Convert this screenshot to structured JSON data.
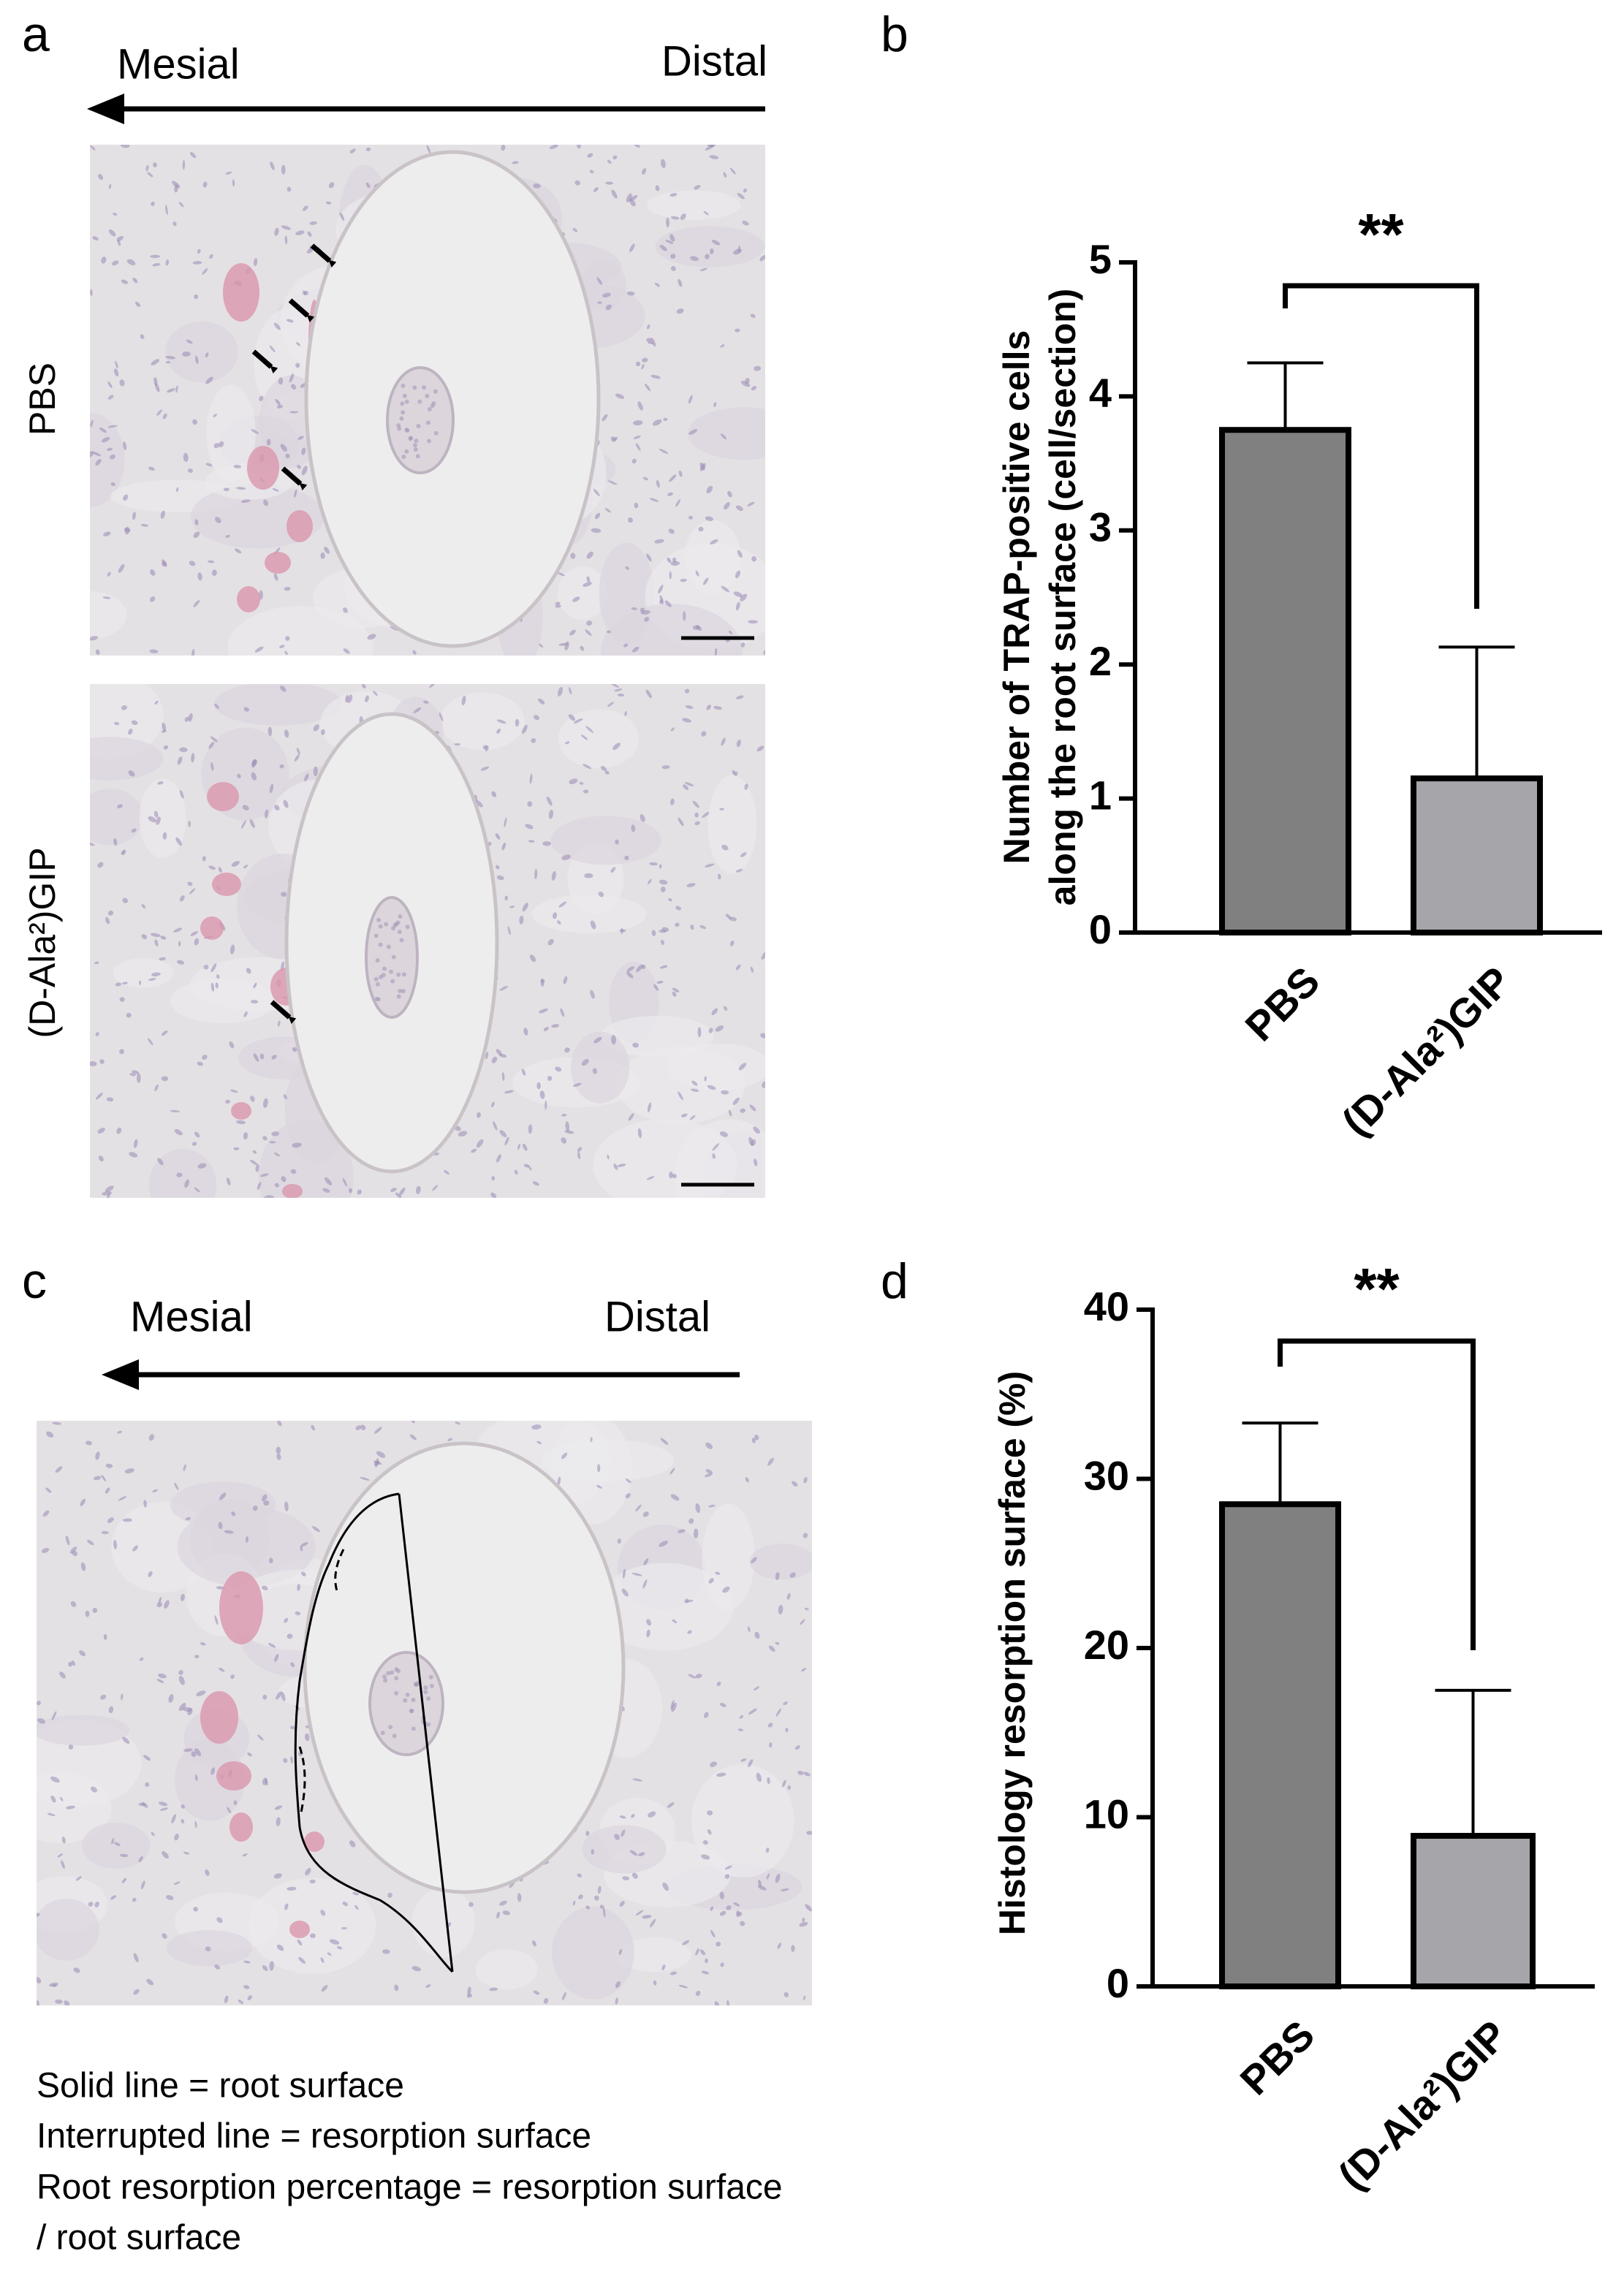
{
  "panels": {
    "a": {
      "label": "a",
      "mesial": "Mesial",
      "distal": "Distal",
      "rows": [
        "PBS",
        "(D-Ala²)GIP"
      ]
    },
    "b": {
      "label": "b"
    },
    "c": {
      "label": "c",
      "mesial": "Mesial",
      "distal": "Distal",
      "notes": [
        "Solid line = root surface",
        "Interrupted line = resorption surface",
        "Root resorption percentage = resorption surface",
        "/ root surface"
      ]
    },
    "d": {
      "label": "d"
    }
  },
  "chart_data": [
    {
      "type": "bar",
      "ylabel": [
        "Number of TRAP-positive cells",
        "along the root surface (cell/section)"
      ],
      "categories": [
        "PBS",
        "(D-Ala²)GIP"
      ],
      "values": [
        3.75,
        1.15
      ],
      "errors": [
        0.5,
        0.98
      ],
      "colors": [
        "#808080",
        "#a5a5aa"
      ],
      "ylim": [
        0,
        5
      ],
      "yticks": [
        0,
        1,
        2,
        3,
        4,
        5
      ],
      "annotation": "**"
    },
    {
      "type": "bar",
      "ylabel": [
        "Histology resorption surface (%)"
      ],
      "categories": [
        "PBS",
        "(D-Ala²)GIP"
      ],
      "values": [
        28.5,
        8.9
      ],
      "errors": [
        4.8,
        8.6
      ],
      "colors": [
        "#808080",
        "#a5a5aa"
      ],
      "ylim": [
        0,
        40
      ],
      "yticks": [
        0,
        10,
        20,
        30,
        40
      ],
      "annotation": "**"
    }
  ]
}
